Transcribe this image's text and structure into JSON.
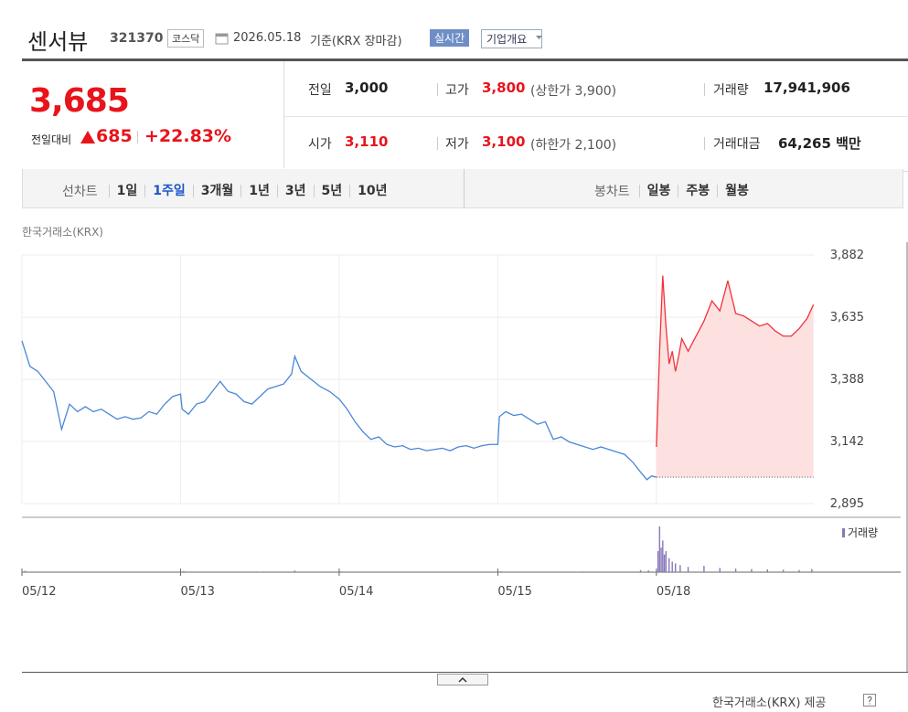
{
  "header": {
    "name": "센서뷰",
    "code": "321370",
    "market": "코스닥",
    "date": "2026.05.18",
    "basis": "기준(KRX 장마감)",
    "realtime": "실시간",
    "company_info": "기업개요"
  },
  "quote": {
    "price": "3,685",
    "change_label": "전일대비",
    "change": "685",
    "change_rate": "+22.83%"
  },
  "info": {
    "prev_close": {
      "label": "전일",
      "value": "3,000"
    },
    "high": {
      "label": "고가",
      "value": "3,800",
      "note": "(상한가 3,900)"
    },
    "volume": {
      "label": "거래량",
      "value": "17,941,906"
    },
    "open": {
      "label": "시가",
      "value": "3,110"
    },
    "low": {
      "label": "저가",
      "value": "3,100",
      "note": "(하한가 2,100)"
    },
    "amount": {
      "label": "거래대금",
      "value": "64,265 백만"
    }
  },
  "line_tabs": {
    "label": "선차트",
    "items": [
      "1일",
      "1주일",
      "3개월",
      "1년",
      "3년",
      "5년",
      "10년"
    ],
    "selected": 1
  },
  "candle_tabs": {
    "label": "봉차트",
    "items": [
      "일봉",
      "주봉",
      "월봉"
    ]
  },
  "source": "한국거래소(KRX)",
  "footer": "한국거래소(KRX) 제공",
  "chart_data": {
    "type": "line",
    "xlim": [
      0,
      5.54
    ],
    "ylim": [
      2895,
      3882
    ],
    "xticks": [
      {
        "value": 0,
        "label": "05/12"
      },
      {
        "value": 1,
        "label": "05/13"
      },
      {
        "value": 2,
        "label": "05/14"
      },
      {
        "value": 3,
        "label": "05/15"
      },
      {
        "value": 4,
        "label": "05/18"
      }
    ],
    "yticks": [
      {
        "value": 3882,
        "label": "3,882"
      },
      {
        "value": 3635,
        "label": "3,635"
      },
      {
        "value": 3388,
        "label": "3,388"
      },
      {
        "value": 3142,
        "label": "3,142"
      },
      {
        "value": 2895,
        "label": "2,895"
      }
    ],
    "grid": true,
    "baseline": 3000,
    "series": [
      {
        "color": "#4a86d8",
        "x": [
          0,
          0.05,
          0.1,
          0.15,
          0.2,
          0.25,
          0.3,
          0.35,
          0.4,
          0.45,
          0.5,
          0.55,
          0.6,
          0.65,
          0.7,
          0.75,
          0.8,
          0.85,
          0.9,
          0.95,
          1,
          1.01,
          1.05,
          1.1,
          1.15,
          1.2,
          1.25,
          1.3,
          1.35,
          1.4,
          1.45,
          1.5,
          1.55,
          1.6,
          1.65,
          1.7,
          1.72,
          1.76,
          1.82,
          1.88,
          1.94,
          2,
          2.05,
          2.1,
          2.15,
          2.2,
          2.25,
          2.3,
          2.35,
          2.4,
          2.45,
          2.5,
          2.55,
          2.6,
          2.65,
          2.7,
          2.75,
          2.8,
          2.85,
          2.9,
          2.95,
          3,
          3.01,
          3.05,
          3.1,
          3.15,
          3.2,
          3.25,
          3.3,
          3.35,
          3.4,
          3.45,
          3.5,
          3.55,
          3.6,
          3.65,
          3.7,
          3.75,
          3.8,
          3.85,
          3.9,
          3.94,
          3.97,
          4
        ],
        "values": [
          3541,
          3440,
          3420,
          3380,
          3340,
          3190,
          3290,
          3260,
          3280,
          3260,
          3270,
          3250,
          3230,
          3240,
          3230,
          3235,
          3260,
          3250,
          3290,
          3320,
          3330,
          3270,
          3250,
          3290,
          3300,
          3340,
          3380,
          3340,
          3330,
          3300,
          3290,
          3320,
          3350,
          3360,
          3370,
          3410,
          3480,
          3420,
          3390,
          3360,
          3340,
          3310,
          3270,
          3220,
          3180,
          3150,
          3160,
          3130,
          3120,
          3125,
          3110,
          3115,
          3105,
          3110,
          3115,
          3105,
          3120,
          3125,
          3115,
          3125,
          3130,
          3130,
          3240,
          3260,
          3245,
          3250,
          3230,
          3210,
          3220,
          3150,
          3160,
          3140,
          3130,
          3120,
          3110,
          3120,
          3110,
          3100,
          3090,
          3060,
          3020,
          2990,
          3005,
          3000
        ]
      },
      {
        "color": "#f0323a",
        "x": [
          4,
          4.02,
          4.04,
          4.06,
          4.08,
          4.1,
          4.12,
          4.14,
          4.16,
          4.2,
          4.25,
          4.3,
          4.35,
          4.4,
          4.45,
          4.5,
          4.55,
          4.6,
          4.65,
          4.7,
          4.75,
          4.8,
          4.85,
          4.9,
          4.95,
          4.99
        ],
        "values": [
          3120,
          3500,
          3800,
          3600,
          3450,
          3500,
          3420,
          3480,
          3550,
          3500,
          3560,
          3620,
          3700,
          3660,
          3780,
          3650,
          3640,
          3620,
          3600,
          3610,
          3580,
          3560,
          3560,
          3590,
          3630,
          3685
        ]
      }
    ],
    "volume": {
      "name": "거래량",
      "color": "#8a78b8",
      "x": [
        0.02,
        0.1,
        0.5,
        1.02,
        1.5,
        1.72,
        2.02,
        2.5,
        3.02,
        3.5,
        3.9,
        3.95,
        4.01,
        4.02,
        4.03,
        4.04,
        4.05,
        4.06,
        4.08,
        4.1,
        4.12,
        4.15,
        4.2,
        4.3,
        4.4,
        4.5,
        4.6,
        4.7,
        4.8,
        4.9,
        4.98
      ],
      "values": [
        40000,
        15000,
        10000,
        30000,
        12000,
        45000,
        20000,
        10000,
        25000,
        12000,
        60000,
        50000,
        600000,
        1300000,
        700000,
        900000,
        500000,
        600000,
        400000,
        300000,
        250000,
        200000,
        150000,
        180000,
        120000,
        100000,
        90000,
        80000,
        70000,
        60000,
        90000
      ]
    }
  }
}
